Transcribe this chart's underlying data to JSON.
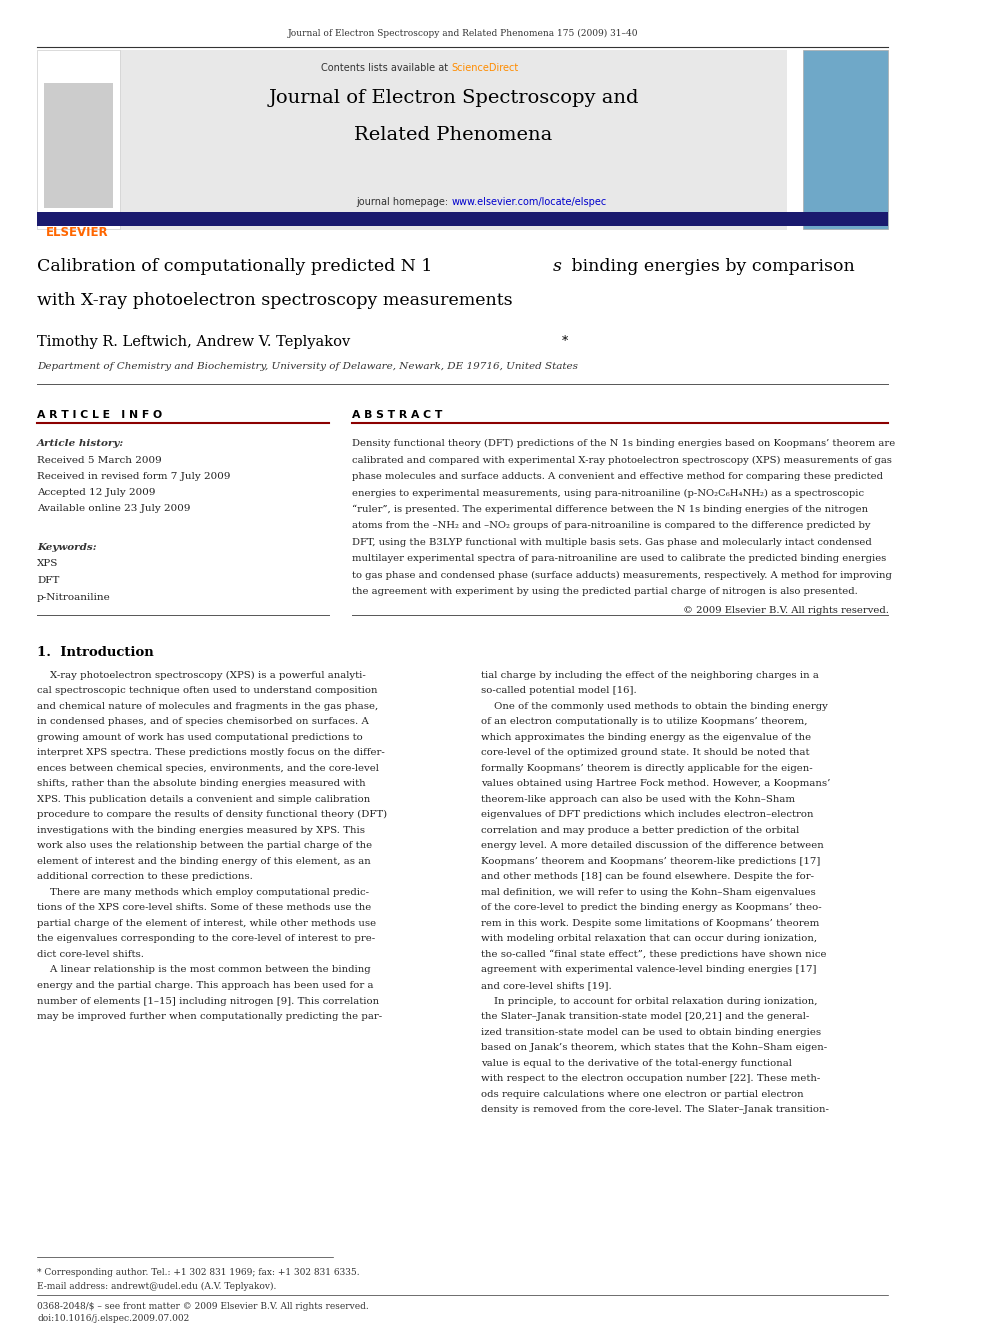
{
  "page_width": 9.92,
  "page_height": 13.23,
  "background": "#ffffff",
  "top_journal_line": "Journal of Electron Spectroscopy and Related Phenomena 175 (2009) 31–40",
  "journal_header_bg": "#e8e8e8",
  "journal_name_line1": "Journal of Electron Spectroscopy and",
  "journal_name_line2": "Related Phenomena",
  "contents_text": "Contents lists available at ",
  "sciencedirect_text": "ScienceDirect",
  "homepage_text": "journal homepage: ",
  "homepage_url": "www.elsevier.com/locate/elspec",
  "elsevier_color": "#ff6600",
  "link_color": "#0000cc",
  "divider_color": "#1a1a6e",
  "article_info_header": "A R T I C L E   I N F O",
  "abstract_header": "A B S T R A C T",
  "article_history_label": "Article history:",
  "received1": "Received 5 March 2009",
  "received2": "Received in revised form 7 July 2009",
  "accepted": "Accepted 12 July 2009",
  "available": "Available online 23 July 2009",
  "keywords_label": "Keywords:",
  "keywords": [
    "XPS",
    "DFT",
    "p-Nitroaniline"
  ],
  "copyright": "© 2009 Elsevier B.V. All rights reserved.",
  "section1_header": "1.  Introduction",
  "footnote_star": "* Corresponding author. Tel.: +1 302 831 1969; fax: +1 302 831 6335.",
  "footnote_email": "E-mail address: andrewt@udel.edu (A.V. Teplyakov).",
  "footer_line1": "0368-2048/$ – see front matter © 2009 Elsevier B.V. All rights reserved.",
  "footer_line2": "doi:10.1016/j.elspec.2009.07.002",
  "abstract_lines": [
    "Density functional theory (DFT) predictions of the N 1s binding energies based on Koopmans’ theorem are",
    "calibrated and compared with experimental X-ray photoelectron spectroscopy (XPS) measurements of gas",
    "phase molecules and surface adducts. A convenient and effective method for comparing these predicted",
    "energies to experimental measurements, using para-nitroaniline (p-NO₂C₆H₄NH₂) as a spectroscopic",
    "“ruler”, is presented. The experimental difference between the N 1s binding energies of the nitrogen",
    "atoms from the –NH₂ and –NO₂ groups of para-nitroaniline is compared to the difference predicted by",
    "DFT, using the B3LYP functional with multiple basis sets. Gas phase and molecularly intact condensed",
    "multilayer experimental spectra of para-nitroaniline are used to calibrate the predicted binding energies",
    "to gas phase and condensed phase (surface adducts) measurements, respectively. A method for improving",
    "the agreement with experiment by using the predicted partial charge of nitrogen is also presented."
  ],
  "intro_left": [
    "    X-ray photoelectron spectroscopy (XPS) is a powerful analyti-",
    "cal spectroscopic technique often used to understand composition",
    "and chemical nature of molecules and fragments in the gas phase,",
    "in condensed phases, and of species chemisorbed on surfaces. A",
    "growing amount of work has used computational predictions to",
    "interpret XPS spectra. These predictions mostly focus on the differ-",
    "ences between chemical species, environments, and the core-level",
    "shifts, rather than the absolute binding energies measured with",
    "XPS. This publication details a convenient and simple calibration",
    "procedure to compare the results of density functional theory (DFT)",
    "investigations with the binding energies measured by XPS. This",
    "work also uses the relationship between the partial charge of the",
    "element of interest and the binding energy of this element, as an",
    "additional correction to these predictions.",
    "    There are many methods which employ computational predic-",
    "tions of the XPS core-level shifts. Some of these methods use the",
    "partial charge of the element of interest, while other methods use",
    "the eigenvalues corresponding to the core-level of interest to pre-",
    "dict core-level shifts.",
    "    A linear relationship is the most common between the binding",
    "energy and the partial charge. This approach has been used for a",
    "number of elements [1–15] including nitrogen [9]. This correlation",
    "may be improved further when computationally predicting the par-"
  ],
  "intro_right": [
    "tial charge by including the effect of the neighboring charges in a",
    "so-called potential model [16].",
    "    One of the commonly used methods to obtain the binding energy",
    "of an electron computationally is to utilize Koopmans’ theorem,",
    "which approximates the binding energy as the eigenvalue of the",
    "core-level of the optimized ground state. It should be noted that",
    "formally Koopmans’ theorem is directly applicable for the eigen-",
    "values obtained using Hartree Fock method. However, a Koopmans’",
    "theorem-like approach can also be used with the Kohn–Sham",
    "eigenvalues of DFT predictions which includes electron–electron",
    "correlation and may produce a better prediction of the orbital",
    "energy level. A more detailed discussion of the difference between",
    "Koopmans’ theorem and Koopmans’ theorem-like predictions [17]",
    "and other methods [18] can be found elsewhere. Despite the for-",
    "mal definition, we will refer to using the Kohn–Sham eigenvalues",
    "of the core-level to predict the binding energy as Koopmans’ theo-",
    "rem in this work. Despite some limitations of Koopmans’ theorem",
    "with modeling orbital relaxation that can occur during ionization,",
    "the so-called “final state effect”, these predictions have shown nice",
    "agreement with experimental valence-level binding energies [17]",
    "and core-level shifts [19].",
    "    In principle, to account for orbital relaxation during ionization,",
    "the Slater–Janak transition-state model [20,21] and the general-",
    "ized transition-state model can be used to obtain binding energies",
    "based on Janak’s theorem, which states that the Kohn–Sham eigen-",
    "value is equal to the derivative of the total-energy functional",
    "with respect to the electron occupation number [22]. These meth-",
    "ods require calculations where one electron or partial electron",
    "density is removed from the core-level. The Slater–Janak transition-"
  ]
}
